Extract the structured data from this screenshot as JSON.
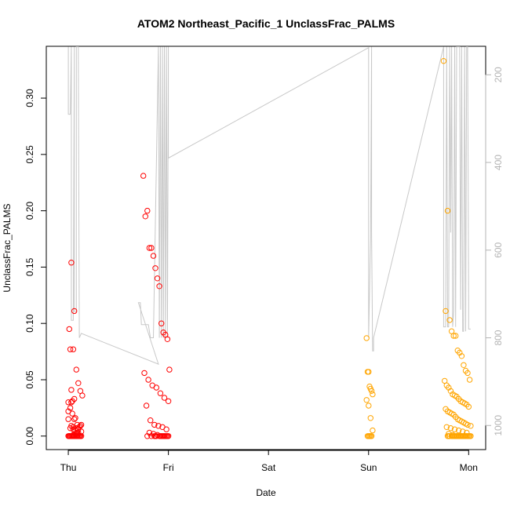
{
  "chart_data": {
    "type": "scatter",
    "title": "ATOM2 Northeast_Pacific_1 UnclassFrac_PALMS",
    "xlabel": "Date",
    "ylabel": "UnclassFrac_PALMS",
    "x_ticks": [
      "Thu",
      "Fri",
      "Sat",
      "Sun",
      "Mon"
    ],
    "x_range_days": [
      -0.22,
      4.17
    ],
    "ylim": [
      -0.012,
      0.346
    ],
    "y_ticks": [
      "0.00",
      "0.05",
      "0.10",
      "0.15",
      "0.20",
      "0.25",
      "0.30"
    ],
    "y_tick_values": [
      0,
      0.05,
      0.1,
      0.15,
      0.2,
      0.25,
      0.3
    ],
    "y2_ticks": [
      "200",
      "400",
      "600",
      "800",
      "1000"
    ],
    "y2_tick_values": [
      200,
      400,
      600,
      800,
      1000
    ],
    "y2_range": [
      1055,
      135
    ],
    "y2_reversed": true,
    "grid": false,
    "colors": {
      "early": "#ff0000",
      "late": "#ffa500",
      "line": "#c8c8c8",
      "axis": "#000000",
      "right_axis": "#b4b4b4"
    },
    "series": [
      {
        "marker": "open-circle",
        "color": "#ff0000",
        "x": [
          0.01,
          0.02,
          0.0,
          0.03,
          0.05,
          0.06,
          0.08,
          0.1,
          0.12,
          0.14,
          0.0,
          0.02,
          0.04,
          0.06,
          0.09,
          0.11,
          0.13,
          0.0,
          0.03,
          0.05,
          0.07,
          0.09,
          0.0,
          0.01,
          0.03,
          0.05,
          0.07,
          0.1,
          0.02,
          0.04,
          0.06,
          0.08,
          0.11,
          0.01,
          0.03,
          0.06,
          0.09,
          0.13,
          0.05,
          0.08,
          0.12,
          0.03,
          0.07,
          0.1,
          0.02,
          0.04,
          0.09,
          0.06,
          0.11,
          0.03,
          0.08,
          0.05,
          0.1,
          0.12,
          0.04,
          0.07,
          0.09,
          0.01,
          0.06,
          0.13
        ],
        "y": [
          0.095,
          0.077,
          0.03,
          0.154,
          0.077,
          0.111,
          0.059,
          0.047,
          0.04,
          0.036,
          0.022,
          0.025,
          0.031,
          0.033,
          0.01,
          0.008,
          0.004,
          0.015,
          0.009,
          0.006,
          0.005,
          0.003,
          0.0,
          0.0,
          0.0,
          0.0,
          0.0,
          0.0,
          0.0,
          0.0,
          0.0,
          0.0,
          0.0,
          0.0,
          0.0,
          0.0,
          0.0,
          0.0,
          0.008,
          0.002,
          0.009,
          0.041,
          0.016,
          0.006,
          0.007,
          0.02,
          0.0,
          0.015,
          0.0,
          0.03,
          0.007,
          0.001,
          0.003,
          0.0,
          0.0,
          0.002,
          0.0,
          0.0,
          0.0,
          0.01
        ]
      },
      {
        "marker": "open-circle",
        "color": "#ff0000",
        "x": [
          0.75,
          0.77,
          0.79,
          0.81,
          0.83,
          0.85,
          0.87,
          0.89,
          0.91,
          0.93,
          0.95,
          0.97,
          0.99,
          1.01,
          0.76,
          0.8,
          0.84,
          0.88,
          0.92,
          0.96,
          1.0,
          0.78,
          0.82,
          0.86,
          0.9,
          0.94,
          0.98,
          0.81,
          0.85,
          0.89,
          0.93,
          0.97,
          0.83,
          0.87,
          0.91,
          0.95,
          0.99,
          0.79,
          0.88,
          0.92,
          0.96,
          1.0,
          0.86,
          0.94,
          0.98
        ],
        "y": [
          0.231,
          0.195,
          0.2,
          0.167,
          0.167,
          0.16,
          0.149,
          0.14,
          0.133,
          0.1,
          0.092,
          0.09,
          0.086,
          0.059,
          0.056,
          0.05,
          0.045,
          0.043,
          0.038,
          0.034,
          0.031,
          0.027,
          0.014,
          0.01,
          0.009,
          0.008,
          0.006,
          0.003,
          0.002,
          0.001,
          0.0,
          0.0,
          0.0,
          0.0,
          0.0,
          0.0,
          0.0,
          0.0,
          0.0,
          0.0,
          0.0,
          0.0,
          0.0,
          0.0,
          0.0
        ]
      },
      {
        "marker": "open-circle",
        "color": "#ffa500",
        "x": [
          2.98,
          2.99,
          3.0,
          3.01,
          3.02,
          3.03,
          3.04,
          2.98,
          3.0,
          3.02,
          3.04,
          2.99,
          3.01,
          3.03,
          3.0,
          3.02
        ],
        "y": [
          0.087,
          0.057,
          0.057,
          0.044,
          0.042,
          0.04,
          0.037,
          0.032,
          0.027,
          0.016,
          0.005,
          0.0,
          0.0,
          0.0,
          0.0,
          0.0
        ]
      },
      {
        "marker": "open-circle",
        "color": "#ffa500",
        "x": [
          3.75,
          3.77,
          3.79,
          3.81,
          3.83,
          3.85,
          3.87,
          3.89,
          3.91,
          3.93,
          3.95,
          3.97,
          3.99,
          4.01,
          3.76,
          3.78,
          3.8,
          3.82,
          3.84,
          3.86,
          3.88,
          3.9,
          3.92,
          3.94,
          3.96,
          3.98,
          4.0,
          3.77,
          3.79,
          3.81,
          3.83,
          3.85,
          3.87,
          3.89,
          3.91,
          3.93,
          3.95,
          3.97,
          3.99,
          4.02,
          3.78,
          3.82,
          3.86,
          3.9,
          3.94,
          3.98,
          3.8,
          3.84,
          3.88,
          3.92,
          3.96,
          4.0,
          3.79,
          3.83,
          3.87,
          3.91,
          3.95,
          3.99,
          3.81,
          3.85,
          3.89,
          3.93,
          3.97,
          4.01,
          3.8,
          3.86,
          3.92,
          3.98,
          3.84,
          3.9,
          3.96,
          4.02,
          3.88,
          3.94
        ],
        "y": [
          0.333,
          0.111,
          0.2,
          0.103,
          0.093,
          0.089,
          0.089,
          0.076,
          0.074,
          0.071,
          0.063,
          0.058,
          0.056,
          0.05,
          0.049,
          0.045,
          0.043,
          0.04,
          0.037,
          0.036,
          0.035,
          0.033,
          0.031,
          0.03,
          0.029,
          0.028,
          0.026,
          0.024,
          0.022,
          0.021,
          0.02,
          0.019,
          0.017,
          0.015,
          0.014,
          0.013,
          0.012,
          0.011,
          0.01,
          0.009,
          0.008,
          0.007,
          0.006,
          0.005,
          0.004,
          0.003,
          0.002,
          0.001,
          0.0,
          0.0,
          0.0,
          0.0,
          0.0,
          0.0,
          0.0,
          0.0,
          0.0,
          0.0,
          0.0,
          0.0,
          0.0,
          0.0,
          0.0,
          0.0,
          0.0,
          0.0,
          0.0,
          0.0,
          0.0,
          0.0,
          0.0,
          0.0,
          0.0,
          0.0
        ]
      },
      {
        "type": "line",
        "axis": "y2",
        "color": "#c8c8c8",
        "x": [
          0.0,
          0.0,
          0.02,
          0.03,
          0.03,
          0.05,
          0.06,
          0.06,
          0.08,
          0.08,
          0.1,
          0.11,
          0.11,
          0.13,
          0.9,
          0.9,
          0.7,
          0.72,
          0.73,
          0.8,
          0.82,
          0.85,
          0.9,
          0.91,
          0.92,
          0.93,
          0.94,
          0.95,
          0.96,
          0.97,
          0.98,
          0.99,
          1.0,
          1.0,
          3.0,
          3.0,
          3.02,
          3.03,
          3.03,
          3.04,
          3.05,
          3.05,
          3.75,
          3.75,
          3.77,
          3.78,
          3.79,
          3.8,
          3.81,
          3.82,
          3.83,
          3.84,
          3.85,
          3.86,
          3.87,
          3.88,
          3.89,
          3.9,
          3.91,
          3.92,
          3.93,
          3.94,
          3.95,
          3.96,
          3.97,
          3.98,
          3.99,
          4.0,
          4.0,
          4.01,
          4.02
        ],
        "y": [
          136,
          290,
          290,
          136,
          760,
          760,
          136,
          740,
          740,
          136,
          136,
          800,
          800,
          790,
          860,
          860,
          720,
          720,
          770,
          770,
          800,
          800,
          136,
          800,
          136,
          800,
          136,
          800,
          136,
          800,
          136,
          800,
          136,
          390,
          138,
          800,
          575,
          136,
          560,
          830,
          830,
          800,
          136,
          775,
          775,
          136,
          775,
          775,
          136,
          560,
          136,
          775,
          740,
          136,
          775,
          136,
          136,
          136,
          136,
          736,
          136,
          785,
          785,
          136,
          785,
          136,
          136,
          720,
          780,
          780,
          780
        ]
      }
    ]
  }
}
